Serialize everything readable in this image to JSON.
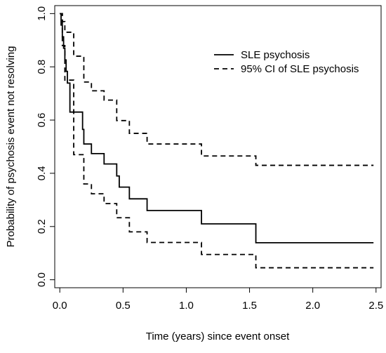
{
  "chart_data": {
    "type": "step",
    "xlabel": "Time (years) since event onset",
    "ylabel": "Probability of psychosis event not resolving",
    "xlim": [
      -0.04,
      2.54
    ],
    "ylim": [
      -0.03,
      1.03
    ],
    "xticks": [
      {
        "value": 0,
        "label": "0.0"
      },
      {
        "value": 0.5,
        "label": "0.5"
      },
      {
        "value": 1,
        "label": "1.0"
      },
      {
        "value": 1.5,
        "label": "1.5"
      },
      {
        "value": 2,
        "label": "2.0"
      },
      {
        "value": 2.5,
        "label": "2.5"
      }
    ],
    "yticks": [
      {
        "value": 0,
        "label": "0.0"
      },
      {
        "value": 0.2,
        "label": "0.2"
      },
      {
        "value": 0.4,
        "label": "0.4"
      },
      {
        "value": 0.6,
        "label": "0.6"
      },
      {
        "value": 0.8,
        "label": "0.8"
      },
      {
        "value": 1,
        "label": "1.0"
      }
    ],
    "legend": "top-right",
    "series": [
      {
        "name": "SLE psychosis",
        "color": "#000000",
        "dash": false,
        "x": [
          0,
          0.01,
          0.02,
          0.03,
          0.04,
          0.05,
          0.06,
          0.08,
          0.18,
          0.19,
          0.25,
          0.35,
          0.45,
          0.47,
          0.55,
          0.69,
          1.12,
          1.55,
          2.48
        ],
        "values": [
          1.0,
          0.957,
          0.913,
          0.87,
          0.826,
          0.783,
          0.739,
          0.63,
          0.565,
          0.51,
          0.474,
          0.435,
          0.39,
          0.348,
          0.304,
          0.26,
          0.21,
          0.139,
          0.139
        ]
      },
      {
        "name": "95% CI of SLE psychosis",
        "color": "#000000",
        "dash": true,
        "x": [
          0,
          0.02,
          0.04,
          0.11,
          0.19,
          0.25,
          0.35,
          0.45,
          0.55,
          0.69,
          1.12,
          1.55,
          2.48
        ],
        "upper": [
          1.0,
          0.97,
          0.93,
          0.84,
          0.743,
          0.71,
          0.675,
          0.598,
          0.55,
          0.51,
          0.465,
          0.43,
          0.43
        ],
        "lower": [
          1.0,
          0.88,
          0.75,
          0.47,
          0.36,
          0.323,
          0.286,
          0.233,
          0.18,
          0.14,
          0.095,
          0.045,
          0.045
        ]
      }
    ]
  }
}
